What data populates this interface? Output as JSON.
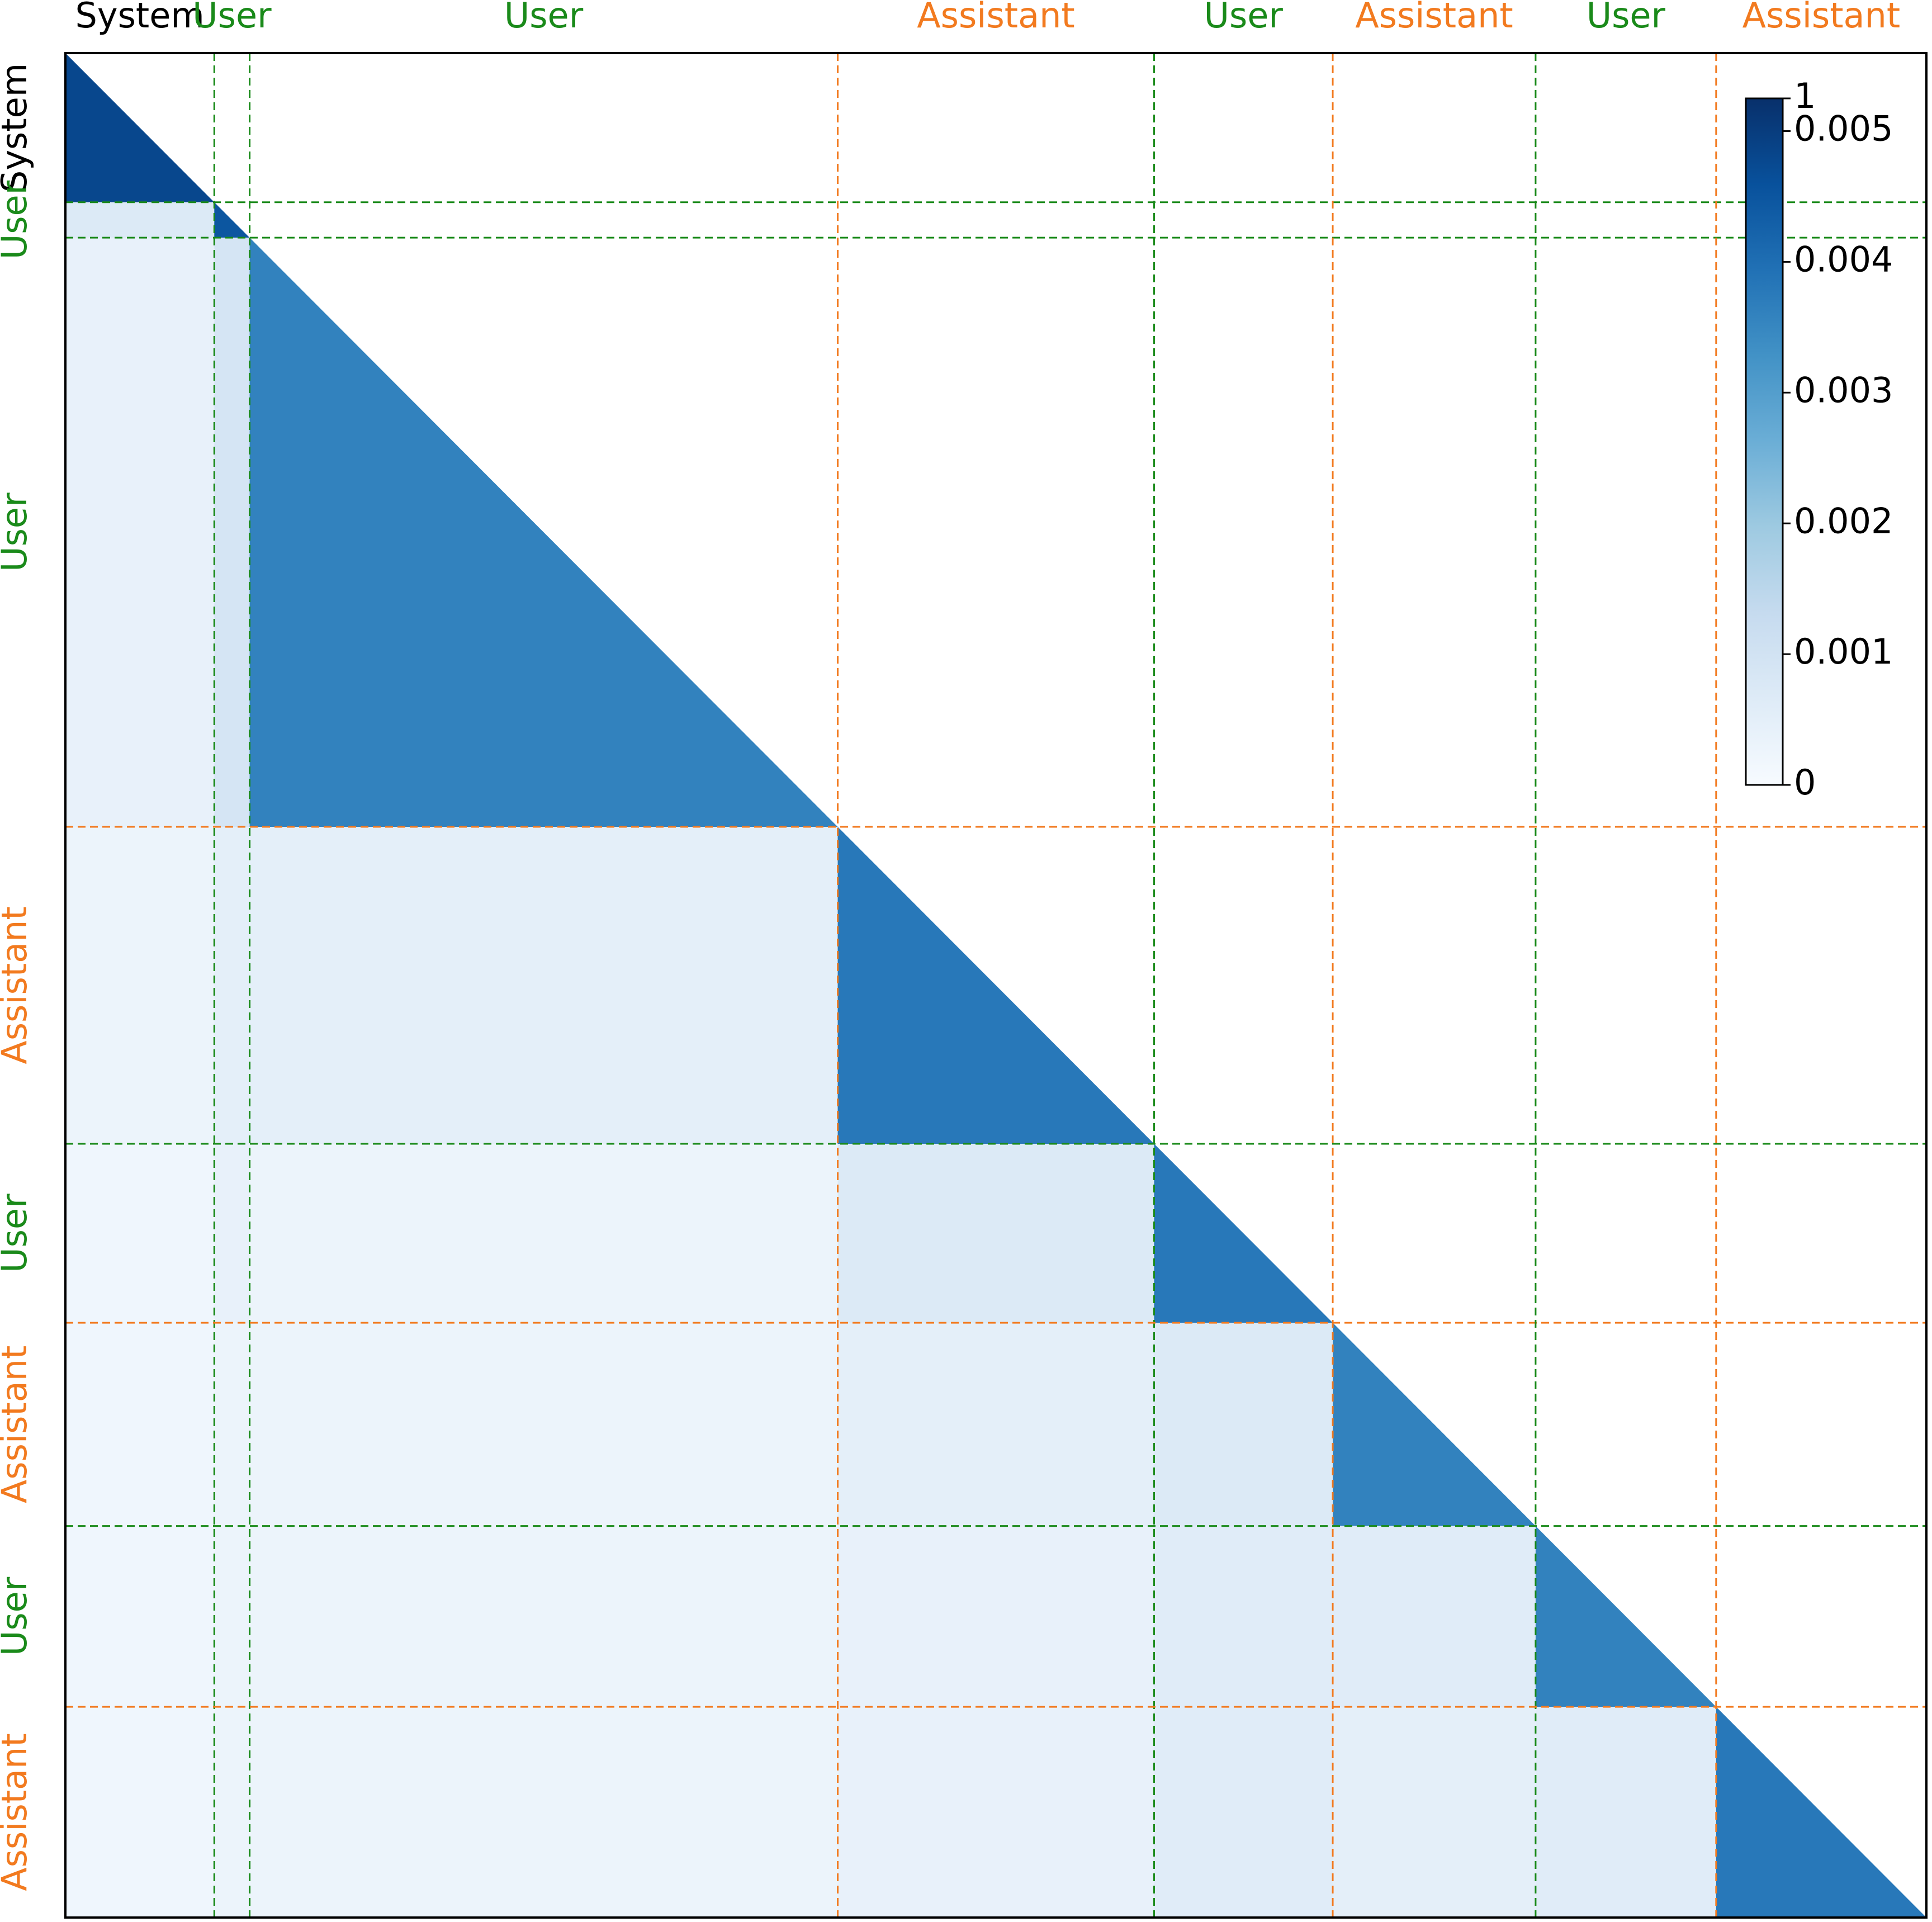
{
  "chart_data": {
    "type": "heatmap",
    "segments": [
      {
        "label": "System",
        "color": "#000000",
        "start": 0,
        "end": 80
      },
      {
        "label": "User",
        "color": "#1a8a1a",
        "start": 80,
        "end": 99
      },
      {
        "label": "User",
        "color": "#1a8a1a",
        "start": 99,
        "end": 415
      },
      {
        "label": "Assistant",
        "color": "#f27a1f",
        "start": 415,
        "end": 585
      },
      {
        "label": "User",
        "color": "#1a8a1a",
        "start": 585,
        "end": 681
      },
      {
        "label": "Assistant",
        "color": "#f27a1f",
        "start": 681,
        "end": 790
      },
      {
        "label": "User",
        "color": "#1a8a1a",
        "start": 790,
        "end": 887
      },
      {
        "label": "Assistant",
        "color": "#f27a1f",
        "start": 887,
        "end": 1000
      }
    ],
    "block_values": [
      [
        0.0048,
        null,
        null,
        null,
        null,
        null,
        null,
        null
      ],
      [
        0.0007,
        0.0045,
        null,
        null,
        null,
        null,
        null,
        null
      ],
      [
        0.0004,
        0.0009,
        0.0036,
        null,
        null,
        null,
        null,
        null
      ],
      [
        0.0003,
        0.0005,
        0.0005,
        0.0038,
        null,
        null,
        null,
        null
      ],
      [
        0.0002,
        0.0004,
        0.0003,
        0.0007,
        0.0038,
        null,
        null,
        null
      ],
      [
        0.0002,
        0.0003,
        0.0003,
        0.0005,
        0.0007,
        0.0036,
        null,
        null
      ],
      [
        0.0002,
        0.0003,
        0.0003,
        0.0004,
        0.0006,
        0.0006,
        0.0036,
        null
      ],
      [
        0.0002,
        0.0003,
        0.0003,
        0.0004,
        0.0006,
        0.0005,
        0.0006,
        0.0038
      ]
    ],
    "colormap": [
      "#f7fbff",
      "#deebf7",
      "#c6dbef",
      "#9ecae1",
      "#6baed6",
      "#4292c6",
      "#2171b5",
      "#08519c",
      "#08306b"
    ],
    "colorbar_lim": [
      0,
      0.00525
    ],
    "colorbar_ticks": [
      0,
      0.001,
      0.002,
      0.003,
      0.004,
      0.005
    ],
    "colorbar_top_label": "1"
  }
}
